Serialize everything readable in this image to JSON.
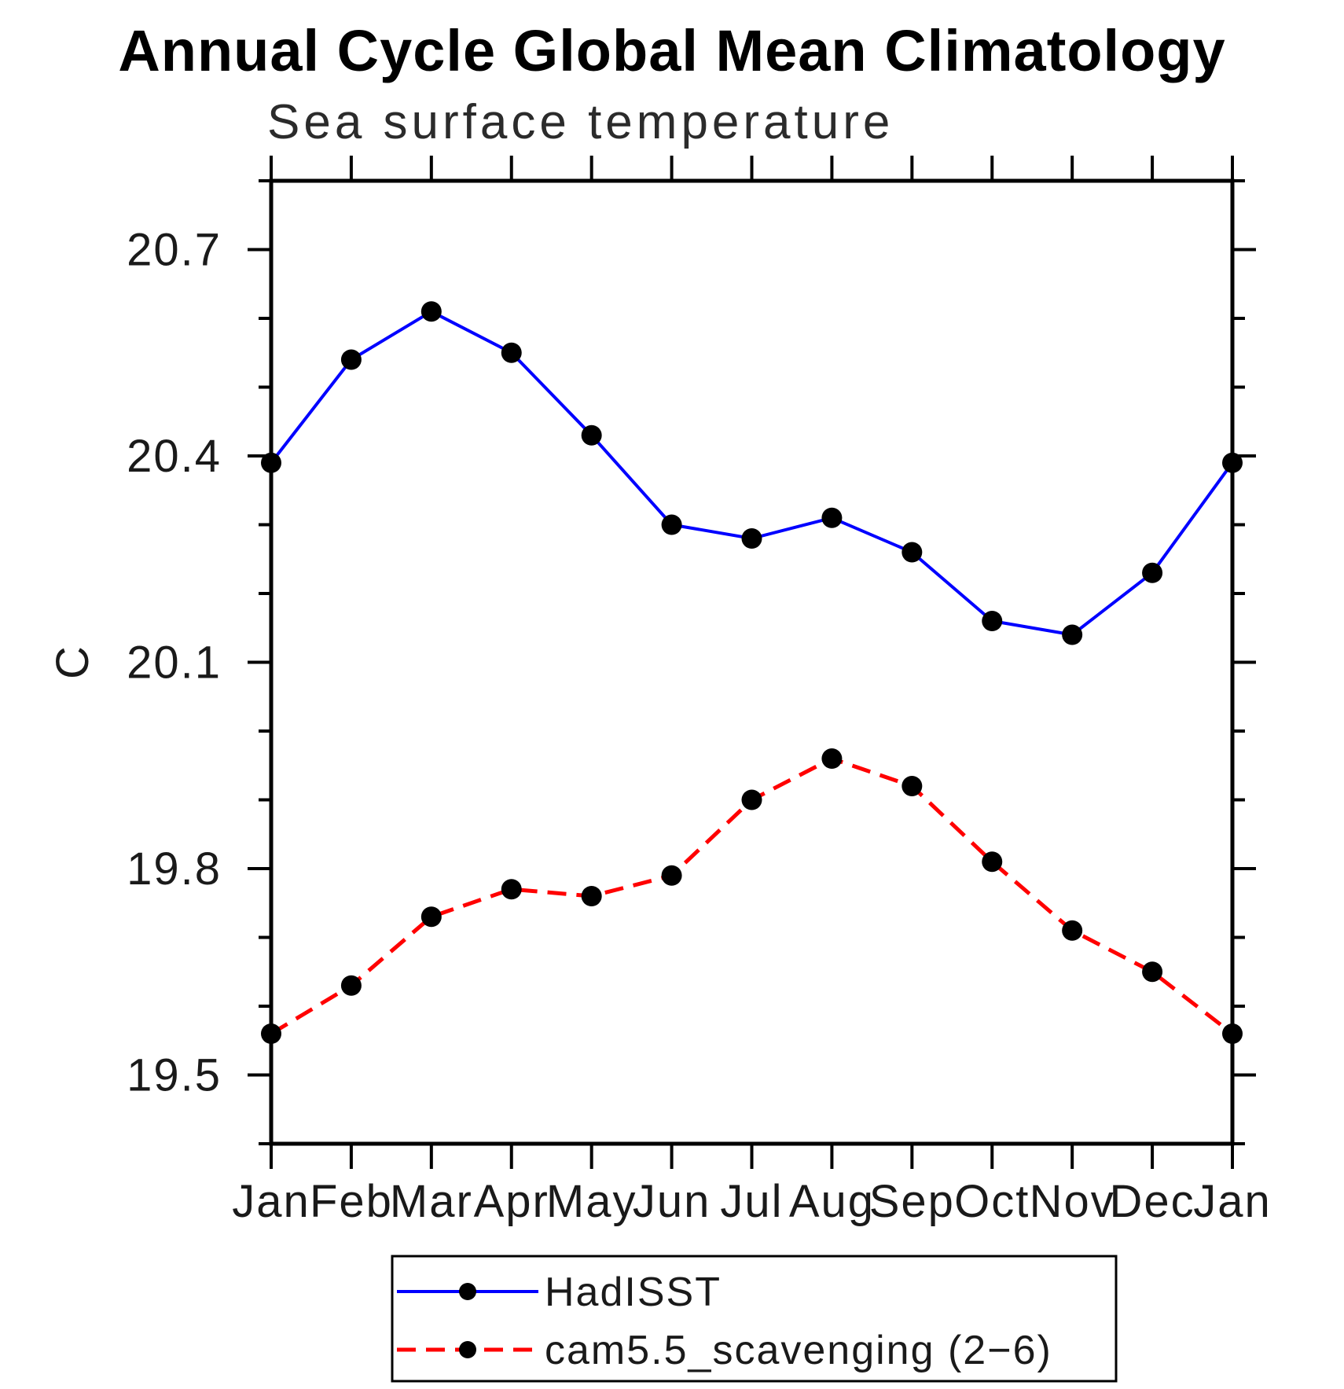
{
  "title": "Annual Cycle Global Mean Climatology",
  "subtitle": "Sea surface temperature",
  "y_axis": {
    "label": "C",
    "tick_labels": [
      "19.5",
      "19.8",
      "20.1",
      "20.4",
      "20.7"
    ]
  },
  "x_axis": {
    "tick_labels": [
      "Jan",
      "Feb",
      "Mar",
      "Apr",
      "May",
      "Jun",
      "Jul",
      "Aug",
      "Sep",
      "Oct",
      "Nov",
      "Dec",
      "Jan"
    ]
  },
  "legend": {
    "entries": [
      {
        "label": "HadISST",
        "color": "#0000FF",
        "style": "solid"
      },
      {
        "label": "cam5.5_scavenging (2−6)",
        "color": "#FF0000",
        "style": "dashed"
      }
    ]
  },
  "colors": {
    "axis": "#000000",
    "marker": "#000000",
    "hadisst": "#0000FF",
    "cam55": "#FF0000"
  },
  "chart_data": {
    "type": "line",
    "title": "Annual Cycle Global Mean Climatology",
    "subtitle": "Sea surface temperature",
    "xlabel": "",
    "ylabel": "C",
    "categories": [
      "Jan",
      "Feb",
      "Mar",
      "Apr",
      "May",
      "Jun",
      "Jul",
      "Aug",
      "Sep",
      "Oct",
      "Nov",
      "Dec",
      "Jan"
    ],
    "series": [
      {
        "name": "HadISST",
        "color": "#0000FF",
        "line_style": "solid",
        "marker": "filled-circle",
        "values": [
          20.39,
          20.54,
          20.61,
          20.55,
          20.43,
          20.3,
          20.28,
          20.31,
          20.26,
          20.16,
          20.14,
          20.23,
          20.39
        ]
      },
      {
        "name": "cam5.5_scavenging (2−6)",
        "color": "#FF0000",
        "line_style": "dashed",
        "marker": "filled-circle",
        "values": [
          19.56,
          19.63,
          19.73,
          19.77,
          19.76,
          19.79,
          19.9,
          19.96,
          19.92,
          19.81,
          19.71,
          19.65,
          19.56
        ]
      }
    ],
    "ylim": [
      19.4,
      20.8
    ],
    "y_major_ticks": [
      19.5,
      19.8,
      20.1,
      20.4,
      20.7
    ],
    "y_minor_step": 0.1,
    "grid": false,
    "legend_position": "bottom-center",
    "ticks": "outward-all-four-spines"
  }
}
